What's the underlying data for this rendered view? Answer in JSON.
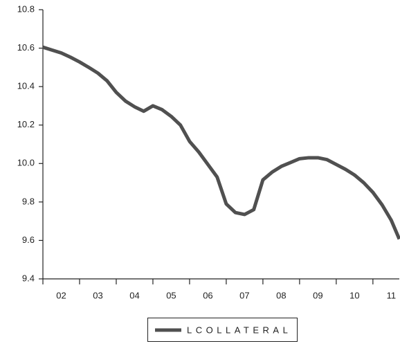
{
  "chart_data": {
    "type": "line",
    "x": [
      2.0,
      2.25,
      2.5,
      2.75,
      3.0,
      3.25,
      3.5,
      3.75,
      4.0,
      4.25,
      4.5,
      4.75,
      5.0,
      5.25,
      5.5,
      5.75,
      6.0,
      6.25,
      6.5,
      6.75,
      7.0,
      7.25,
      7.5,
      7.75,
      8.0,
      8.25,
      8.5,
      8.75,
      9.0,
      9.25,
      9.5,
      9.75,
      10.0,
      10.25,
      10.5,
      10.75,
      11.0,
      11.25,
      11.5,
      11.72
    ],
    "series": [
      {
        "name": "LCOLLATERAL",
        "color": "#505050",
        "values": [
          10.605,
          10.59,
          10.575,
          10.553,
          10.528,
          10.5,
          10.47,
          10.43,
          10.37,
          10.325,
          10.295,
          10.272,
          10.3,
          10.28,
          10.245,
          10.2,
          10.115,
          10.06,
          9.995,
          9.93,
          9.79,
          9.745,
          9.735,
          9.76,
          9.915,
          9.955,
          9.985,
          10.005,
          10.025,
          10.03,
          10.03,
          10.02,
          9.995,
          9.97,
          9.94,
          9.9,
          9.85,
          9.785,
          9.705,
          9.607
        ]
      }
    ],
    "xlim": [
      2,
      11.72
    ],
    "xticks": [
      {
        "value": 2.5,
        "label": "02"
      },
      {
        "value": 3.5,
        "label": "03"
      },
      {
        "value": 4.5,
        "label": "04"
      },
      {
        "value": 5.5,
        "label": "05"
      },
      {
        "value": 6.5,
        "label": "06"
      },
      {
        "value": 7.5,
        "label": "07"
      },
      {
        "value": 8.5,
        "label": "08"
      },
      {
        "value": 9.5,
        "label": "09"
      },
      {
        "value": 10.5,
        "label": "10"
      },
      {
        "value": 11.5,
        "label": "11"
      }
    ],
    "xtick_marks": [
      2,
      3,
      4,
      5,
      6,
      7,
      8,
      9,
      10,
      11
    ],
    "ylim": [
      9.4,
      10.8
    ],
    "yticks": [
      9.4,
      9.6,
      9.8,
      {
        "value": 10,
        "label": "10.0"
      },
      10.2,
      10.4,
      10.6,
      10.8
    ],
    "legend": "bottom"
  }
}
